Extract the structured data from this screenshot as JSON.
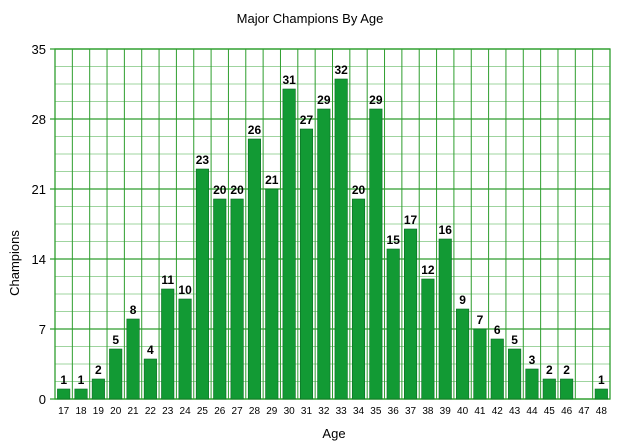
{
  "chart_data": {
    "type": "bar",
    "title": "Major Champions By Age",
    "xlabel": "Age",
    "ylabel": "Champions",
    "categories": [
      "17",
      "18",
      "19",
      "20",
      "21",
      "22",
      "23",
      "24",
      "25",
      "26",
      "27",
      "28",
      "29",
      "30",
      "31",
      "32",
      "33",
      "34",
      "35",
      "36",
      "37",
      "38",
      "39",
      "40",
      "41",
      "42",
      "43",
      "44",
      "45",
      "46",
      "47",
      "48"
    ],
    "values": [
      1,
      1,
      2,
      5,
      8,
      4,
      11,
      10,
      23,
      20,
      20,
      26,
      21,
      31,
      27,
      29,
      32,
      20,
      29,
      15,
      17,
      12,
      16,
      9,
      7,
      6,
      5,
      3,
      2,
      2,
      0,
      1
    ],
    "data_labels": [
      "1",
      "1",
      "2",
      "5",
      "8",
      "4",
      "11",
      "10",
      "23",
      "20",
      "20",
      "26",
      "21",
      "31",
      "27",
      "29",
      "32",
      "20",
      "29",
      "15",
      "17",
      "12",
      "16",
      "9",
      "7",
      "6",
      "5",
      "3",
      "2",
      "2",
      "",
      "1"
    ],
    "yticks": [
      0,
      7,
      14,
      21,
      28,
      35
    ],
    "ytick_labels": [
      "0",
      "7",
      "14",
      "21",
      "28",
      "35"
    ],
    "ylim": [
      0,
      35
    ],
    "grid": true,
    "legend": "none",
    "colors": {
      "bar": "#129a34",
      "bar_edge": "#0b6b22",
      "grid_major": "#2e9e2e",
      "grid_minor": "#9fd49f",
      "frame": "#2e9e2e"
    }
  }
}
